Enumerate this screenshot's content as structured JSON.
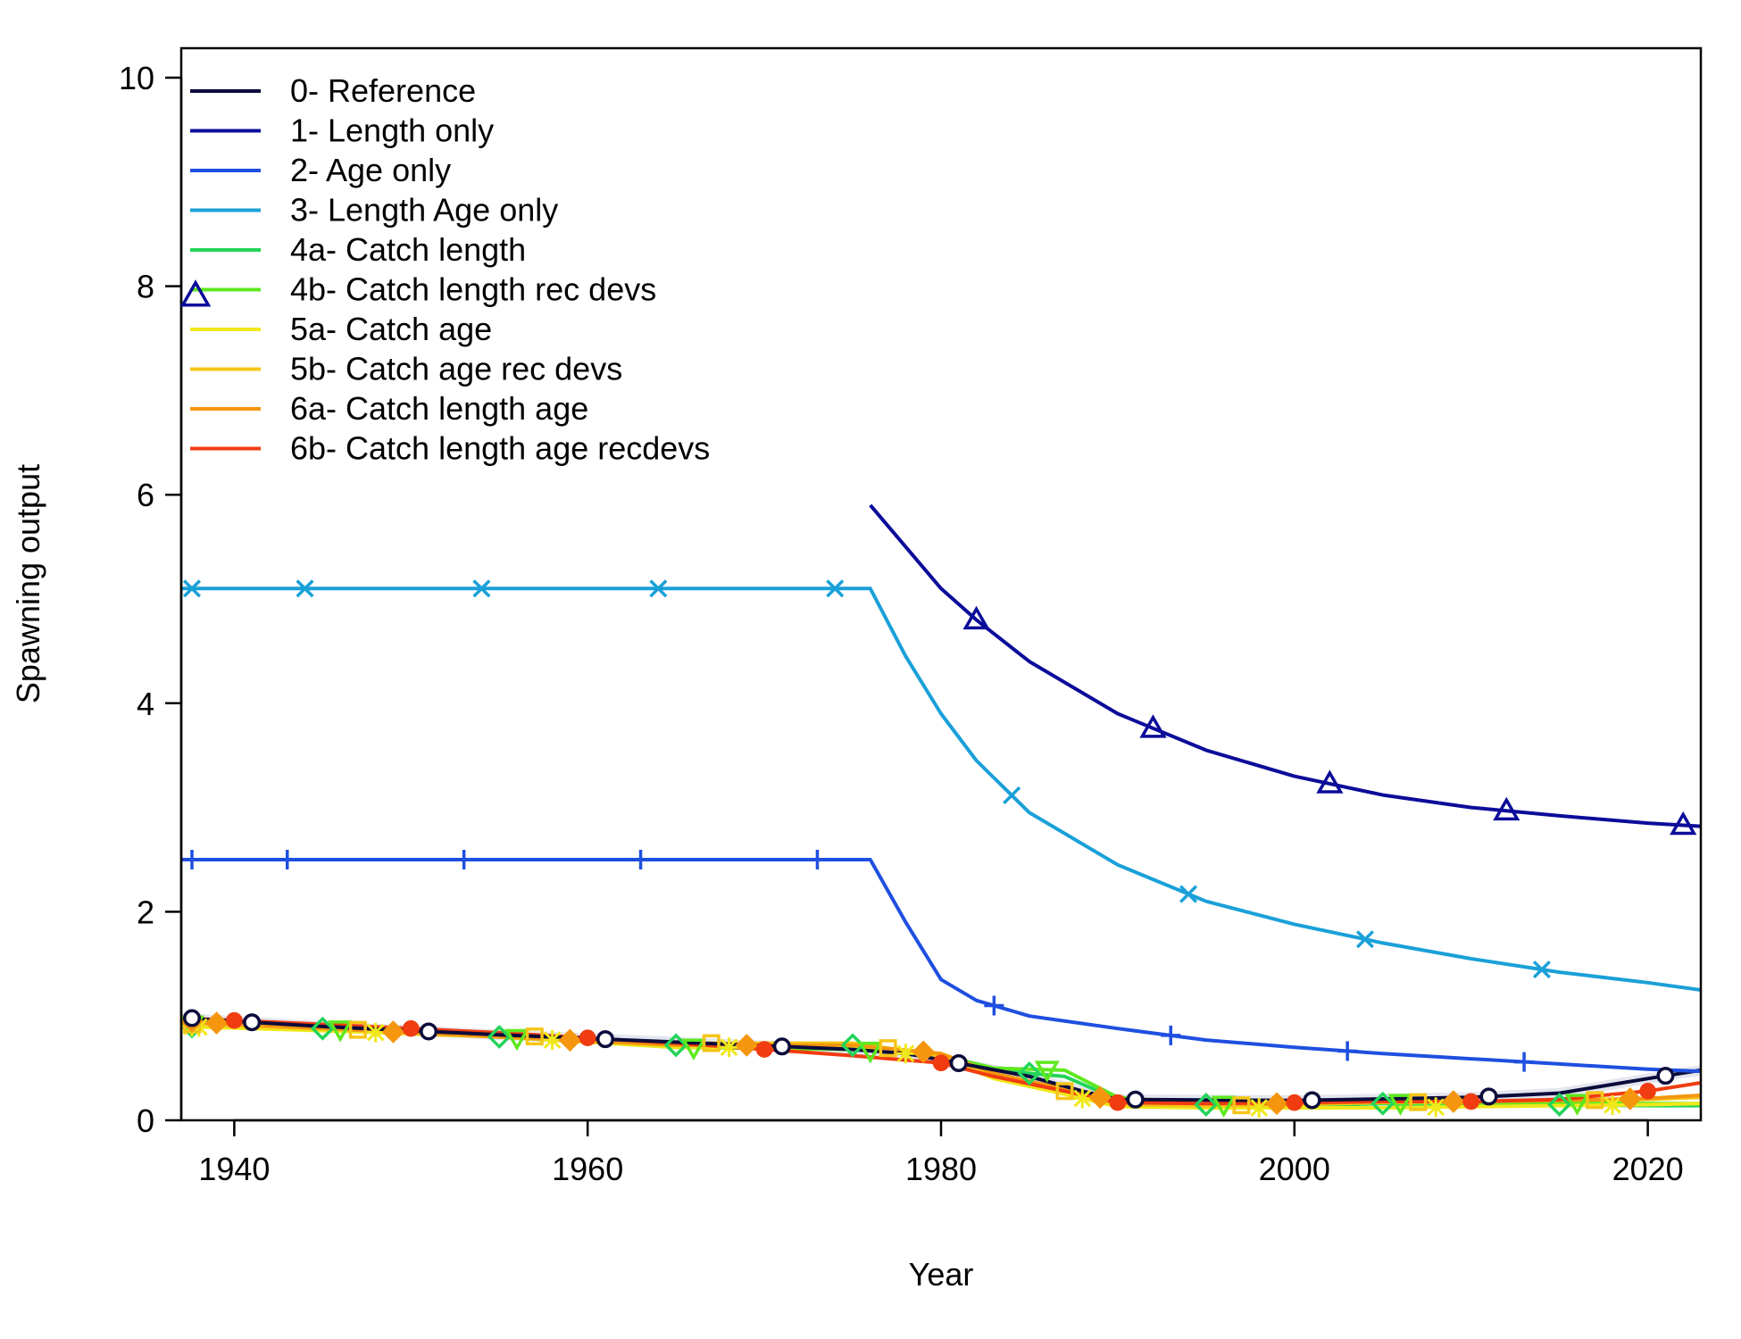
{
  "chart_data": {
    "type": "line",
    "xlabel": "Year",
    "ylabel": "Spawning output",
    "xlim": [
      1937,
      2023
    ],
    "ylim": [
      0,
      10
    ],
    "x_ticks": [
      1940,
      1960,
      1980,
      2000,
      2020
    ],
    "y_ticks": [
      0,
      2,
      4,
      6,
      8,
      10
    ],
    "x_tick_labels": [
      "1940",
      "1960",
      "1980",
      "2000",
      "2020"
    ],
    "y_tick_labels": [
      "0",
      "2",
      "4",
      "6",
      "8",
      "10"
    ],
    "legend_position": "top-left",
    "series": [
      {
        "name": "0- Reference",
        "color": "#0b0b3b",
        "marker": "circle-open",
        "x": [
          1937,
          1945,
          1955,
          1965,
          1975,
          1978,
          1980,
          1985,
          1988,
          1990,
          2000,
          2010,
          2015,
          2020,
          2023
        ],
        "y": [
          0.98,
          0.9,
          0.82,
          0.75,
          0.68,
          0.64,
          0.58,
          0.42,
          0.28,
          0.2,
          0.19,
          0.22,
          0.26,
          0.4,
          0.48
        ],
        "marker_x": [
          1941,
          1951,
          1961,
          1971,
          1981,
          1991,
          2001,
          2011,
          2021
        ]
      },
      {
        "name": "1- Length only",
        "color": "#0c0c9a",
        "marker": "triangle-open",
        "x": [
          1976,
          1978,
          1980,
          1982,
          1985,
          1990,
          1995,
          2000,
          2005,
          2010,
          2015,
          2020,
          2023
        ],
        "y": [
          5.9,
          5.5,
          5.1,
          4.8,
          4.4,
          3.9,
          3.55,
          3.3,
          3.12,
          3.0,
          2.92,
          2.85,
          2.82
        ],
        "marker_x": [
          1982,
          1992,
          2002,
          2012,
          2022
        ]
      },
      {
        "name": "2- Age only",
        "color": "#1f4fe0",
        "marker": "plus",
        "x": [
          1937,
          1976,
          1978,
          1980,
          1982,
          1985,
          1990,
          1995,
          2000,
          2005,
          2010,
          2015,
          2020,
          2023
        ],
        "y": [
          2.5,
          2.5,
          1.9,
          1.35,
          1.15,
          1.0,
          0.88,
          0.77,
          0.7,
          0.64,
          0.59,
          0.54,
          0.49,
          0.47
        ],
        "marker_x": [
          1943,
          1953,
          1963,
          1973,
          1983,
          1993,
          2003,
          2013
        ]
      },
      {
        "name": "3- Length Age only",
        "color": "#1aa0d8",
        "marker": "cross",
        "x": [
          1937,
          1976,
          1978,
          1980,
          1982,
          1985,
          1990,
          1995,
          2000,
          2005,
          2010,
          2015,
          2020,
          2023
        ],
        "y": [
          5.1,
          5.1,
          4.45,
          3.9,
          3.45,
          2.95,
          2.45,
          2.1,
          1.88,
          1.7,
          1.55,
          1.42,
          1.32,
          1.25
        ],
        "marker_x": [
          1944,
          1954,
          1964,
          1974,
          1984,
          1994,
          2004,
          2014
        ]
      },
      {
        "name": "4a- Catch length",
        "color": "#22d45a",
        "marker": "diamond-open",
        "x": [
          1937,
          1945,
          1955,
          1965,
          1975,
          1980,
          1983,
          1987,
          1990,
          1995,
          2000,
          2005,
          2010,
          2015,
          2020,
          2023
        ],
        "y": [
          0.9,
          0.88,
          0.8,
          0.72,
          0.72,
          0.6,
          0.48,
          0.42,
          0.2,
          0.15,
          0.14,
          0.16,
          0.14,
          0.15,
          0.14,
          0.14
        ],
        "marker_x": [
          1945,
          1955,
          1965,
          1975,
          1985,
          1995,
          2005,
          2015
        ]
      },
      {
        "name": "4b- Catch length rec devs",
        "color": "#5ee81e",
        "marker": "triangle-down-open",
        "x": [
          1937,
          1945,
          1955,
          1965,
          1975,
          1980,
          1983,
          1987,
          1990,
          1995,
          2000,
          2005,
          2010,
          2015,
          2020,
          2023
        ],
        "y": [
          0.92,
          0.88,
          0.8,
          0.7,
          0.68,
          0.62,
          0.5,
          0.48,
          0.22,
          0.15,
          0.15,
          0.17,
          0.16,
          0.17,
          0.16,
          0.16
        ],
        "marker_x": [
          1946,
          1956,
          1966,
          1976,
          1986,
          1996,
          2006,
          2016
        ]
      },
      {
        "name": "5a- Catch age",
        "color": "#f0e81a",
        "marker": "asterisk",
        "x": [
          1937,
          1945,
          1955,
          1965,
          1975,
          1980,
          1983,
          1987,
          1990,
          1995,
          2000,
          2005,
          2010,
          2015,
          2020,
          2023
        ],
        "y": [
          0.9,
          0.86,
          0.8,
          0.7,
          0.7,
          0.6,
          0.4,
          0.25,
          0.13,
          0.12,
          0.12,
          0.12,
          0.13,
          0.14,
          0.15,
          0.16
        ],
        "marker_x": [
          1938,
          1948,
          1958,
          1968,
          1978,
          1988,
          1998,
          2008,
          2018
        ]
      },
      {
        "name": "5b- Catch age rec devs",
        "color": "#f5c518",
        "marker": "square-open",
        "x": [
          1937,
          1945,
          1955,
          1965,
          1975,
          1980,
          1983,
          1987,
          1990,
          1995,
          2000,
          2005,
          2010,
          2015,
          2020,
          2023
        ],
        "y": [
          0.92,
          0.88,
          0.82,
          0.74,
          0.74,
          0.62,
          0.42,
          0.28,
          0.15,
          0.14,
          0.15,
          0.17,
          0.18,
          0.19,
          0.2,
          0.22
        ],
        "marker_x": [
          1947,
          1957,
          1967,
          1977,
          1987,
          1997,
          2007,
          2017
        ]
      },
      {
        "name": "6a- Catch length age",
        "color": "#f5960e",
        "marker": "diamond-filled",
        "x": [
          1937,
          1945,
          1955,
          1965,
          1975,
          1980,
          1983,
          1987,
          1990,
          1995,
          2000,
          2005,
          2010,
          2015,
          2020,
          2023
        ],
        "y": [
          0.95,
          0.88,
          0.8,
          0.72,
          0.72,
          0.64,
          0.45,
          0.3,
          0.18,
          0.16,
          0.16,
          0.18,
          0.18,
          0.19,
          0.21,
          0.24
        ],
        "marker_x": [
          1939,
          1949,
          1959,
          1969,
          1979,
          1989,
          1999,
          2009,
          2019
        ]
      },
      {
        "name": "6b- Catch length age recdevs",
        "color": "#f03c10",
        "marker": "circle-filled",
        "x": [
          1937,
          1945,
          1955,
          1965,
          1975,
          1980,
          1983,
          1987,
          1990,
          1995,
          2000,
          2005,
          2010,
          2015,
          2020,
          2023
        ],
        "y": [
          0.98,
          0.92,
          0.84,
          0.74,
          0.62,
          0.55,
          0.42,
          0.28,
          0.17,
          0.16,
          0.17,
          0.18,
          0.18,
          0.2,
          0.28,
          0.36
        ],
        "marker_x": [
          1940,
          1950,
          1960,
          1970,
          1980,
          1990,
          2000,
          2010,
          2020
        ]
      }
    ],
    "legend_extra_marker": {
      "series": "1- Length only",
      "marker": "triangle-open"
    }
  }
}
